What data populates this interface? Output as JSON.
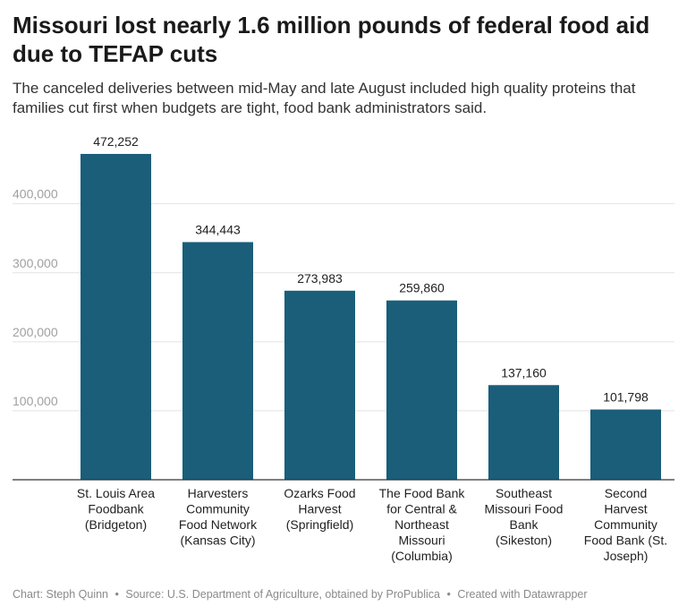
{
  "title": "Missouri lost nearly 1.6 million pounds of federal food aid due to TEFAP cuts",
  "subtitle": "The canceled deliveries between mid-May and late August included high quality proteins that families cut first when budgets are tight, food bank administrators said.",
  "chart_data": {
    "type": "bar",
    "categories": [
      [
        "St. Louis Area",
        "Foodbank",
        "(Bridgeton)"
      ],
      [
        "Harvesters",
        "Community",
        "Food Network",
        "(Kansas City)"
      ],
      [
        "Ozarks Food",
        "Harvest",
        "(Springfield)"
      ],
      [
        "The Food Bank",
        "for Central &",
        "Northeast",
        "Missouri",
        "(Columbia)"
      ],
      [
        "Southeast",
        "Missouri Food",
        "Bank",
        "(Sikeston)"
      ],
      [
        "Second",
        "Harvest",
        "Community",
        "Food Bank (St.",
        "Joseph)"
      ]
    ],
    "values": [
      472252,
      344443,
      273983,
      259860,
      137160,
      101798
    ],
    "value_labels": [
      "472,252",
      "344,443",
      "273,983",
      "259,860",
      "137,160",
      "101,798"
    ],
    "y_ticks": [
      100000,
      200000,
      300000,
      400000
    ],
    "y_tick_labels": [
      "100,000",
      "200,000",
      "300,000",
      "400,000"
    ],
    "ylim": [
      0,
      480000
    ],
    "grid": true,
    "bar_color": "#1a5e7a"
  },
  "footer": {
    "chart_by": "Chart: Steph Quinn",
    "source": "Source: U.S. Department of Agriculture, obtained by ProPublica",
    "created": "Created with Datawrapper",
    "separator": "•"
  }
}
